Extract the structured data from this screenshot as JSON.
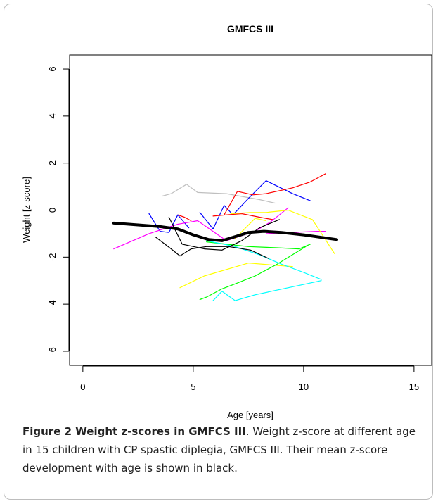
{
  "chart_data": {
    "type": "line",
    "title": "GMFCS III",
    "xlabel": "Age [years]",
    "ylabel": "Weight [z-score]",
    "xlim": [
      -0.6,
      15.8
    ],
    "ylim": [
      -6.6,
      6.6
    ],
    "xticks": [
      0,
      5,
      10,
      15
    ],
    "yticks": [
      -6,
      -4,
      -2,
      0,
      2,
      4,
      6
    ],
    "grid": false,
    "series": [
      {
        "color": "#bfbfbf",
        "width": 1.2,
        "points": [
          [
            3.6,
            0.6
          ],
          [
            4.0,
            0.7
          ],
          [
            4.7,
            1.1
          ],
          [
            5.2,
            0.75
          ],
          [
            6.5,
            0.7
          ],
          [
            8.0,
            0.45
          ],
          [
            8.7,
            0.3
          ]
        ]
      },
      {
        "color": "#0000ff",
        "width": 1.2,
        "points": [
          [
            5.3,
            -0.1
          ],
          [
            5.9,
            -0.8
          ],
          [
            6.4,
            0.2
          ],
          [
            6.8,
            -0.2
          ],
          [
            7.5,
            0.5
          ],
          [
            8.3,
            1.25
          ],
          [
            9.5,
            0.7
          ],
          [
            10.3,
            0.4
          ]
        ]
      },
      {
        "color": "#ff0000",
        "width": 1.2,
        "points": [
          [
            6.4,
            -0.2
          ],
          [
            7.0,
            0.8
          ],
          [
            7.7,
            0.65
          ],
          [
            8.3,
            0.7
          ],
          [
            9.5,
            0.95
          ],
          [
            10.3,
            1.2
          ],
          [
            11.0,
            1.55
          ]
        ]
      },
      {
        "color": "#ff0000",
        "width": 1.2,
        "points": [
          [
            5.9,
            -0.25
          ],
          [
            6.5,
            -0.2
          ],
          [
            7.2,
            -0.15
          ],
          [
            8.0,
            -0.3
          ],
          [
            8.6,
            -0.4
          ]
        ]
      },
      {
        "color": "#ff0000",
        "width": 1.2,
        "points": [
          [
            4.3,
            -0.2
          ],
          [
            4.6,
            -0.3
          ],
          [
            4.9,
            -0.45
          ]
        ]
      },
      {
        "color": "#0000ff",
        "width": 1.2,
        "points": [
          [
            3.0,
            -0.15
          ],
          [
            3.5,
            -0.9
          ],
          [
            3.9,
            -0.95
          ],
          [
            4.3,
            -0.2
          ],
          [
            4.8,
            -0.75
          ]
        ]
      },
      {
        "color": "#ff00ff",
        "width": 1.2,
        "points": [
          [
            1.4,
            -1.65
          ],
          [
            3.0,
            -1.0
          ],
          [
            4.3,
            -0.6
          ],
          [
            5.2,
            -0.45
          ],
          [
            6.5,
            -1.3
          ],
          [
            7.8,
            -0.9
          ],
          [
            8.5,
            -0.5
          ],
          [
            9.3,
            0.1
          ]
        ]
      },
      {
        "color": "#ff00ff",
        "width": 1.2,
        "points": [
          [
            8.3,
            -1.0
          ],
          [
            9.5,
            -0.95
          ],
          [
            10.6,
            -0.9
          ],
          [
            11.0,
            -0.9
          ]
        ]
      },
      {
        "color": "#ffff00",
        "width": 1.2,
        "points": [
          [
            6.7,
            -0.15
          ],
          [
            7.6,
            -0.1
          ],
          [
            8.3,
            -0.1
          ],
          [
            9.3,
            0.0
          ],
          [
            10.4,
            -0.4
          ],
          [
            11.4,
            -1.85
          ]
        ]
      },
      {
        "color": "#ffff00",
        "width": 1.2,
        "points": [
          [
            4.4,
            -3.3
          ],
          [
            5.5,
            -2.8
          ],
          [
            7.5,
            -2.25
          ],
          [
            8.8,
            -2.35
          ],
          [
            9.5,
            -2.4
          ]
        ]
      },
      {
        "color": "#ffff00",
        "width": 1.2,
        "points": [
          [
            6.9,
            -1.2
          ],
          [
            7.8,
            -0.35
          ],
          [
            8.3,
            -0.45
          ]
        ]
      },
      {
        "color": "#00ff00",
        "width": 1.2,
        "points": [
          [
            5.3,
            -3.8
          ],
          [
            5.6,
            -3.7
          ],
          [
            6.3,
            -3.35
          ],
          [
            7.0,
            -3.1
          ],
          [
            7.8,
            -2.8
          ],
          [
            8.8,
            -2.3
          ],
          [
            10.1,
            -1.55
          ]
        ]
      },
      {
        "color": "#00ff00",
        "width": 1.2,
        "points": [
          [
            5.6,
            -1.35
          ],
          [
            6.5,
            -1.45
          ],
          [
            7.5,
            -1.55
          ],
          [
            8.8,
            -1.6
          ],
          [
            9.8,
            -1.65
          ],
          [
            10.3,
            -1.45
          ]
        ]
      },
      {
        "color": "#00ffff",
        "width": 1.2,
        "points": [
          [
            5.9,
            -3.85
          ],
          [
            6.3,
            -3.45
          ],
          [
            6.9,
            -3.85
          ],
          [
            7.8,
            -3.6
          ],
          [
            8.8,
            -3.4
          ],
          [
            9.8,
            -3.2
          ],
          [
            10.8,
            -3.0
          ]
        ]
      },
      {
        "color": "#00ffff",
        "width": 1.2,
        "points": [
          [
            5.6,
            -1.3
          ],
          [
            6.9,
            -1.55
          ],
          [
            8.0,
            -1.9
          ],
          [
            9.0,
            -2.3
          ],
          [
            10.0,
            -2.65
          ],
          [
            10.8,
            -2.95
          ]
        ]
      },
      {
        "color": "#000000",
        "width": 1.2,
        "points": [
          [
            3.3,
            -1.15
          ],
          [
            4.0,
            -1.65
          ],
          [
            4.4,
            -1.95
          ],
          [
            4.9,
            -1.65
          ],
          [
            5.6,
            -1.55
          ],
          [
            6.6,
            -1.55
          ],
          [
            7.6,
            -1.7
          ],
          [
            8.4,
            -2.05
          ]
        ]
      },
      {
        "color": "#000000",
        "width": 1.2,
        "points": [
          [
            3.9,
            -0.3
          ],
          [
            4.5,
            -1.45
          ],
          [
            5.5,
            -1.65
          ],
          [
            6.3,
            -1.7
          ],
          [
            7.2,
            -1.3
          ],
          [
            8.0,
            -0.75
          ],
          [
            8.9,
            -0.4
          ]
        ]
      },
      {
        "color": "#000000",
        "width": 4,
        "points": [
          [
            1.4,
            -0.55
          ],
          [
            3.5,
            -0.7
          ],
          [
            4.3,
            -0.8
          ],
          [
            5.0,
            -1.05
          ],
          [
            5.7,
            -1.25
          ],
          [
            6.3,
            -1.3
          ],
          [
            7.0,
            -1.1
          ],
          [
            7.5,
            -0.95
          ],
          [
            8.2,
            -0.9
          ],
          [
            9.0,
            -0.95
          ],
          [
            10.0,
            -1.05
          ],
          [
            11.5,
            -1.25
          ]
        ]
      }
    ]
  },
  "caption": {
    "label": "Figure 2 Weight z-scores in GMFCS III",
    "text": ". Weight z-score at different age in 15 children with CP spastic diplegia, GMFCS III. Their mean z-score development with age is shown in black."
  }
}
